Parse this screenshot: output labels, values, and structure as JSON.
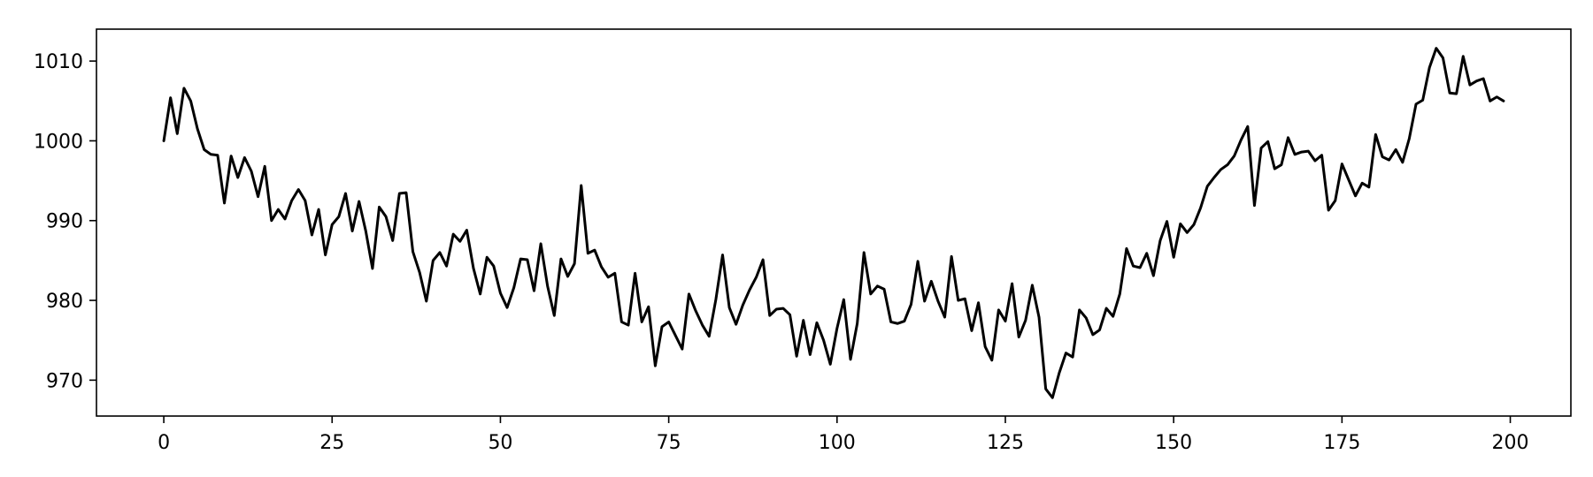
{
  "chart_data": {
    "type": "line",
    "title": "",
    "xlabel": "",
    "ylabel": "",
    "xlim": [
      -10,
      209
    ],
    "ylim": [
      965.5,
      1014
    ],
    "xticks": [
      0,
      25,
      50,
      75,
      100,
      125,
      150,
      175,
      200
    ],
    "yticks": [
      970,
      980,
      990,
      1000,
      1010
    ],
    "grid": false,
    "legend": "none",
    "colors": {
      "line": "#000000",
      "axis": "#000000",
      "background": "#ffffff"
    },
    "series": [
      {
        "values": [
          1000.0,
          1005.4,
          1000.9,
          1006.6,
          1005.0,
          1001.5,
          998.9,
          998.3,
          998.2,
          992.2,
          998.1,
          995.4,
          997.9,
          996.2,
          993.0,
          996.8,
          990.0,
          991.4,
          990.2,
          992.5,
          993.9,
          992.5,
          988.2,
          991.4,
          985.7,
          989.5,
          990.5,
          993.4,
          988.7,
          992.4,
          988.7,
          984.0,
          991.7,
          990.5,
          987.5,
          993.4,
          993.5,
          986.1,
          983.5,
          979.9,
          985.0,
          986.0,
          984.3,
          988.3,
          987.4,
          988.8,
          984.0,
          980.8,
          985.4,
          984.3,
          980.9,
          979.1,
          981.6,
          985.2,
          985.1,
          981.2,
          987.1,
          981.8,
          978.1,
          985.2,
          983.0,
          984.6,
          994.4,
          985.9,
          986.3,
          984.2,
          982.9,
          983.4,
          977.3,
          976.9,
          983.4,
          977.3,
          979.2,
          971.8,
          976.7,
          977.3,
          975.6,
          973.9,
          980.8,
          978.7,
          976.9,
          975.5,
          980.1,
          985.7,
          979.1,
          977.0,
          979.4,
          981.3,
          982.9,
          985.1,
          978.1,
          978.9,
          979.0,
          978.2,
          973.0,
          977.5,
          973.2,
          977.2,
          975.0,
          972.0,
          976.5,
          980.1,
          972.6,
          977.1,
          986.0,
          980.8,
          981.8,
          981.4,
          977.3,
          977.1,
          977.4,
          979.5,
          984.9,
          979.9,
          982.4,
          979.9,
          977.9,
          985.5,
          980.0,
          980.2,
          976.2,
          979.7,
          974.2,
          972.5,
          978.8,
          977.4,
          982.1,
          975.4,
          977.5,
          981.9,
          977.9,
          968.9,
          967.8,
          970.9,
          973.4,
          972.9,
          978.8,
          977.8,
          975.7,
          976.3,
          979.0,
          978.0,
          980.8,
          986.5,
          984.3,
          984.1,
          985.9,
          983.1,
          987.5,
          989.9,
          985.4,
          989.6,
          988.5,
          989.5,
          991.6,
          994.3,
          995.4,
          996.4,
          997.0,
          998.1,
          1000.1,
          1001.8,
          991.9,
          999.1,
          999.9,
          996.5,
          997.0,
          1000.4,
          998.3,
          998.6,
          998.7,
          997.5,
          998.2,
          991.3,
          992.5,
          997.1,
          995.1,
          993.1,
          994.7,
          994.2,
          1000.8,
          998.0,
          997.6,
          998.9,
          997.3,
          1000.3,
          1004.6,
          1005.1,
          1009.2,
          1011.6,
          1010.4,
          1006.0,
          1005.9,
          1010.6,
          1007.0,
          1007.5,
          1007.8,
          1005.0,
          1005.5,
          1005.0
        ]
      }
    ]
  }
}
